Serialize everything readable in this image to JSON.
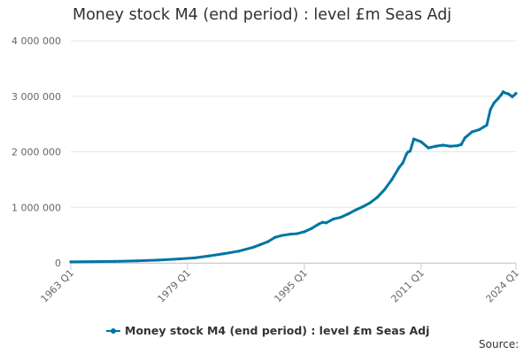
{
  "chart_data": {
    "type": "line",
    "title": "Money stock M4 (end period) : level £m Seas Adj",
    "xlabel": "",
    "ylabel": "",
    "x_range": [
      1963,
      2024
    ],
    "ylim": [
      0,
      4000000
    ],
    "y_ticks": [
      {
        "value": 0,
        "label": "0"
      },
      {
        "value": 1000000,
        "label": "1 000 000"
      },
      {
        "value": 2000000,
        "label": "2 000 000"
      },
      {
        "value": 3000000,
        "label": "3 000 000"
      },
      {
        "value": 4000000,
        "label": "4 000 000"
      }
    ],
    "x_ticks": [
      {
        "value": 1963,
        "label": "1963 Q1"
      },
      {
        "value": 1979,
        "label": "1979 Q1"
      },
      {
        "value": 1995,
        "label": "1995 Q1"
      },
      {
        "value": 2011,
        "label": "2011 Q1"
      },
      {
        "value": 2024,
        "label": "2024 Q1"
      }
    ],
    "grid": "horizontal",
    "legend_position": "bottom",
    "series_color": "#0075a3",
    "series": [
      {
        "name": "Money stock M4 (end period) : level £m Seas Adj",
        "x": [
          1963,
          1966,
          1969,
          1972,
          1975,
          1978,
          1980,
          1982,
          1984,
          1986,
          1988,
          1989,
          1990,
          1991,
          1992,
          1993,
          1994,
          1995,
          1996,
          1997,
          1997.5,
          1998,
          1999,
          2000,
          2001,
          2002,
          2003,
          2004,
          2005,
          2006,
          2007,
          2008,
          2008.5,
          2009,
          2009.25,
          2009.5,
          2010,
          2011,
          2012,
          2013,
          2014,
          2015,
          2016,
          2016.5,
          2017,
          2018,
          2019,
          2019.5,
          2020,
          2020.5,
          2021,
          2021.5,
          2022,
          2022.25,
          2022.5,
          2023,
          2023.5,
          2024
        ],
        "y": [
          18000,
          21000,
          26000,
          35000,
          50000,
          72000,
          90000,
          125000,
          165000,
          210000,
          280000,
          330000,
          380000,
          460000,
          495000,
          515000,
          525000,
          560000,
          620000,
          700000,
          730000,
          720000,
          790000,
          820000,
          880000,
          950000,
          1010000,
          1080000,
          1180000,
          1320000,
          1500000,
          1720000,
          1800000,
          1960000,
          2000000,
          2010000,
          2230000,
          2180000,
          2070000,
          2100000,
          2120000,
          2100000,
          2110000,
          2130000,
          2250000,
          2360000,
          2400000,
          2440000,
          2480000,
          2760000,
          2880000,
          2950000,
          3030000,
          3080000,
          3060000,
          3040000,
          2990000,
          3050000
        ]
      }
    ],
    "source_label": "Source:"
  }
}
